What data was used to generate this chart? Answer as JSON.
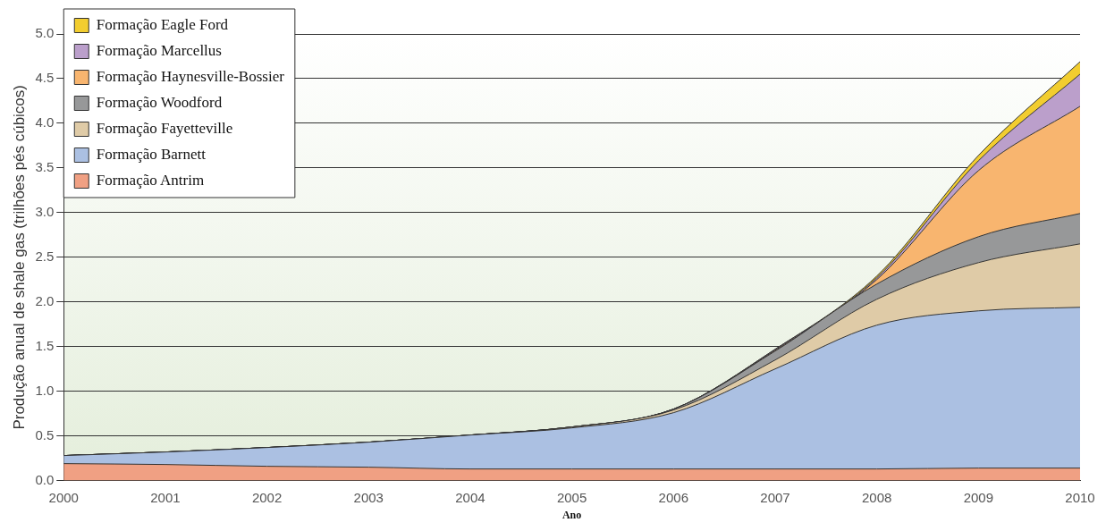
{
  "chart_data": {
    "type": "area",
    "stacked": true,
    "xlabel": "Ano",
    "ylabel": "Produção anual de shale gas (trilhões pés cúbicos)",
    "x": [
      2000,
      2001,
      2002,
      2003,
      2004,
      2005,
      2006,
      2007,
      2008,
      2009,
      2010
    ],
    "xlim": [
      2000,
      2010
    ],
    "xticks": [
      2000,
      2001,
      2002,
      2003,
      2004,
      2005,
      2006,
      2007,
      2008,
      2009,
      2010
    ],
    "ylim": [
      0,
      5
    ],
    "yticks": [
      {
        "value": 0,
        "label": "0.0"
      },
      {
        "value": 0.5,
        "label": "0.5"
      },
      {
        "value": 1,
        "label": "1.0"
      },
      {
        "value": 1.5,
        "label": "1.5"
      },
      {
        "value": 2,
        "label": "2.0"
      },
      {
        "value": 2.5,
        "label": "2.5"
      },
      {
        "value": 3,
        "label": "3.0"
      },
      {
        "value": 3.5,
        "label": "3.5"
      },
      {
        "value": 4,
        "label": "4.0"
      },
      {
        "value": 4.5,
        "label": "4.5"
      },
      {
        "value": 5,
        "label": "5.0"
      }
    ],
    "grid": "y",
    "legend": "top left",
    "series": [
      {
        "name": "Formação Antrim",
        "color": "#f0a083",
        "values": [
          0.19,
          0.18,
          0.16,
          0.15,
          0.13,
          0.13,
          0.13,
          0.13,
          0.13,
          0.14,
          0.14
        ]
      },
      {
        "name": "Formação Barnett",
        "color": "#abc0e2",
        "values": [
          0.09,
          0.14,
          0.21,
          0.28,
          0.38,
          0.46,
          0.63,
          1.12,
          1.61,
          1.76,
          1.8
        ]
      },
      {
        "name": "Formação Fayetteville",
        "color": "#dfcba7",
        "values": [
          0,
          0,
          0,
          0,
          0,
          0.01,
          0.03,
          0.1,
          0.29,
          0.54,
          0.71
        ]
      },
      {
        "name": "Formação Woodford",
        "color": "#979899",
        "values": [
          0,
          0,
          0,
          0,
          0,
          0,
          0.01,
          0.1,
          0.17,
          0.29,
          0.34
        ]
      },
      {
        "name": "Formação Haynesville-Bossier",
        "color": "#f8b56f",
        "values": [
          0,
          0,
          0,
          0,
          0,
          0,
          0,
          0.01,
          0.05,
          0.74,
          1.2
        ]
      },
      {
        "name": "Formação Marcellus",
        "color": "#bb9fcb",
        "values": [
          0,
          0,
          0,
          0,
          0,
          0,
          0,
          0.01,
          0.02,
          0.11,
          0.36
        ]
      },
      {
        "name": "Formação Eagle Ford",
        "color": "#f2cd2f",
        "values": [
          0,
          0,
          0,
          0,
          0,
          0,
          0,
          0,
          0.02,
          0.06,
          0.14
        ]
      }
    ]
  }
}
